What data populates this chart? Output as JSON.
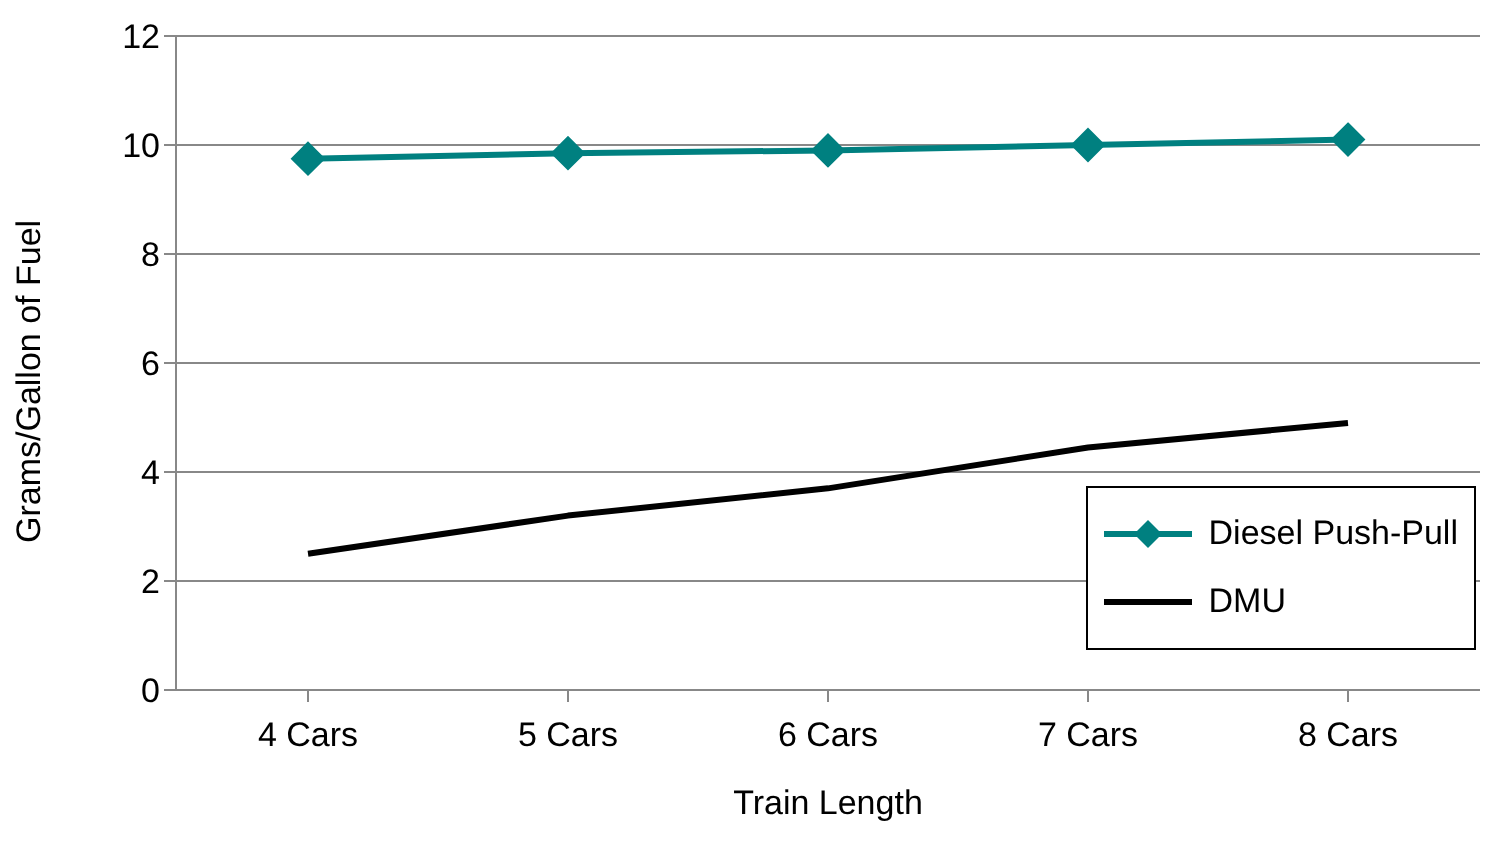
{
  "chart_data": {
    "type": "line",
    "xlabel": "Train Length",
    "ylabel": "Grams/Gallon of Fuel",
    "categories": [
      "4 Cars",
      "5 Cars",
      "6 Cars",
      "7 Cars",
      "8 Cars"
    ],
    "series": [
      {
        "name": "Diesel Push-Pull",
        "color": "#008080",
        "marker": "diamond",
        "values": [
          9.75,
          9.85,
          9.9,
          10.0,
          10.1
        ]
      },
      {
        "name": "DMU",
        "color": "#000000",
        "marker": "none",
        "values": [
          2.5,
          3.2,
          3.7,
          4.45,
          4.9
        ]
      }
    ],
    "ylim": [
      0,
      12
    ],
    "yticks": [
      0,
      2,
      4,
      6,
      8,
      10,
      12
    ],
    "grid": "y",
    "legend": "bottom right"
  }
}
